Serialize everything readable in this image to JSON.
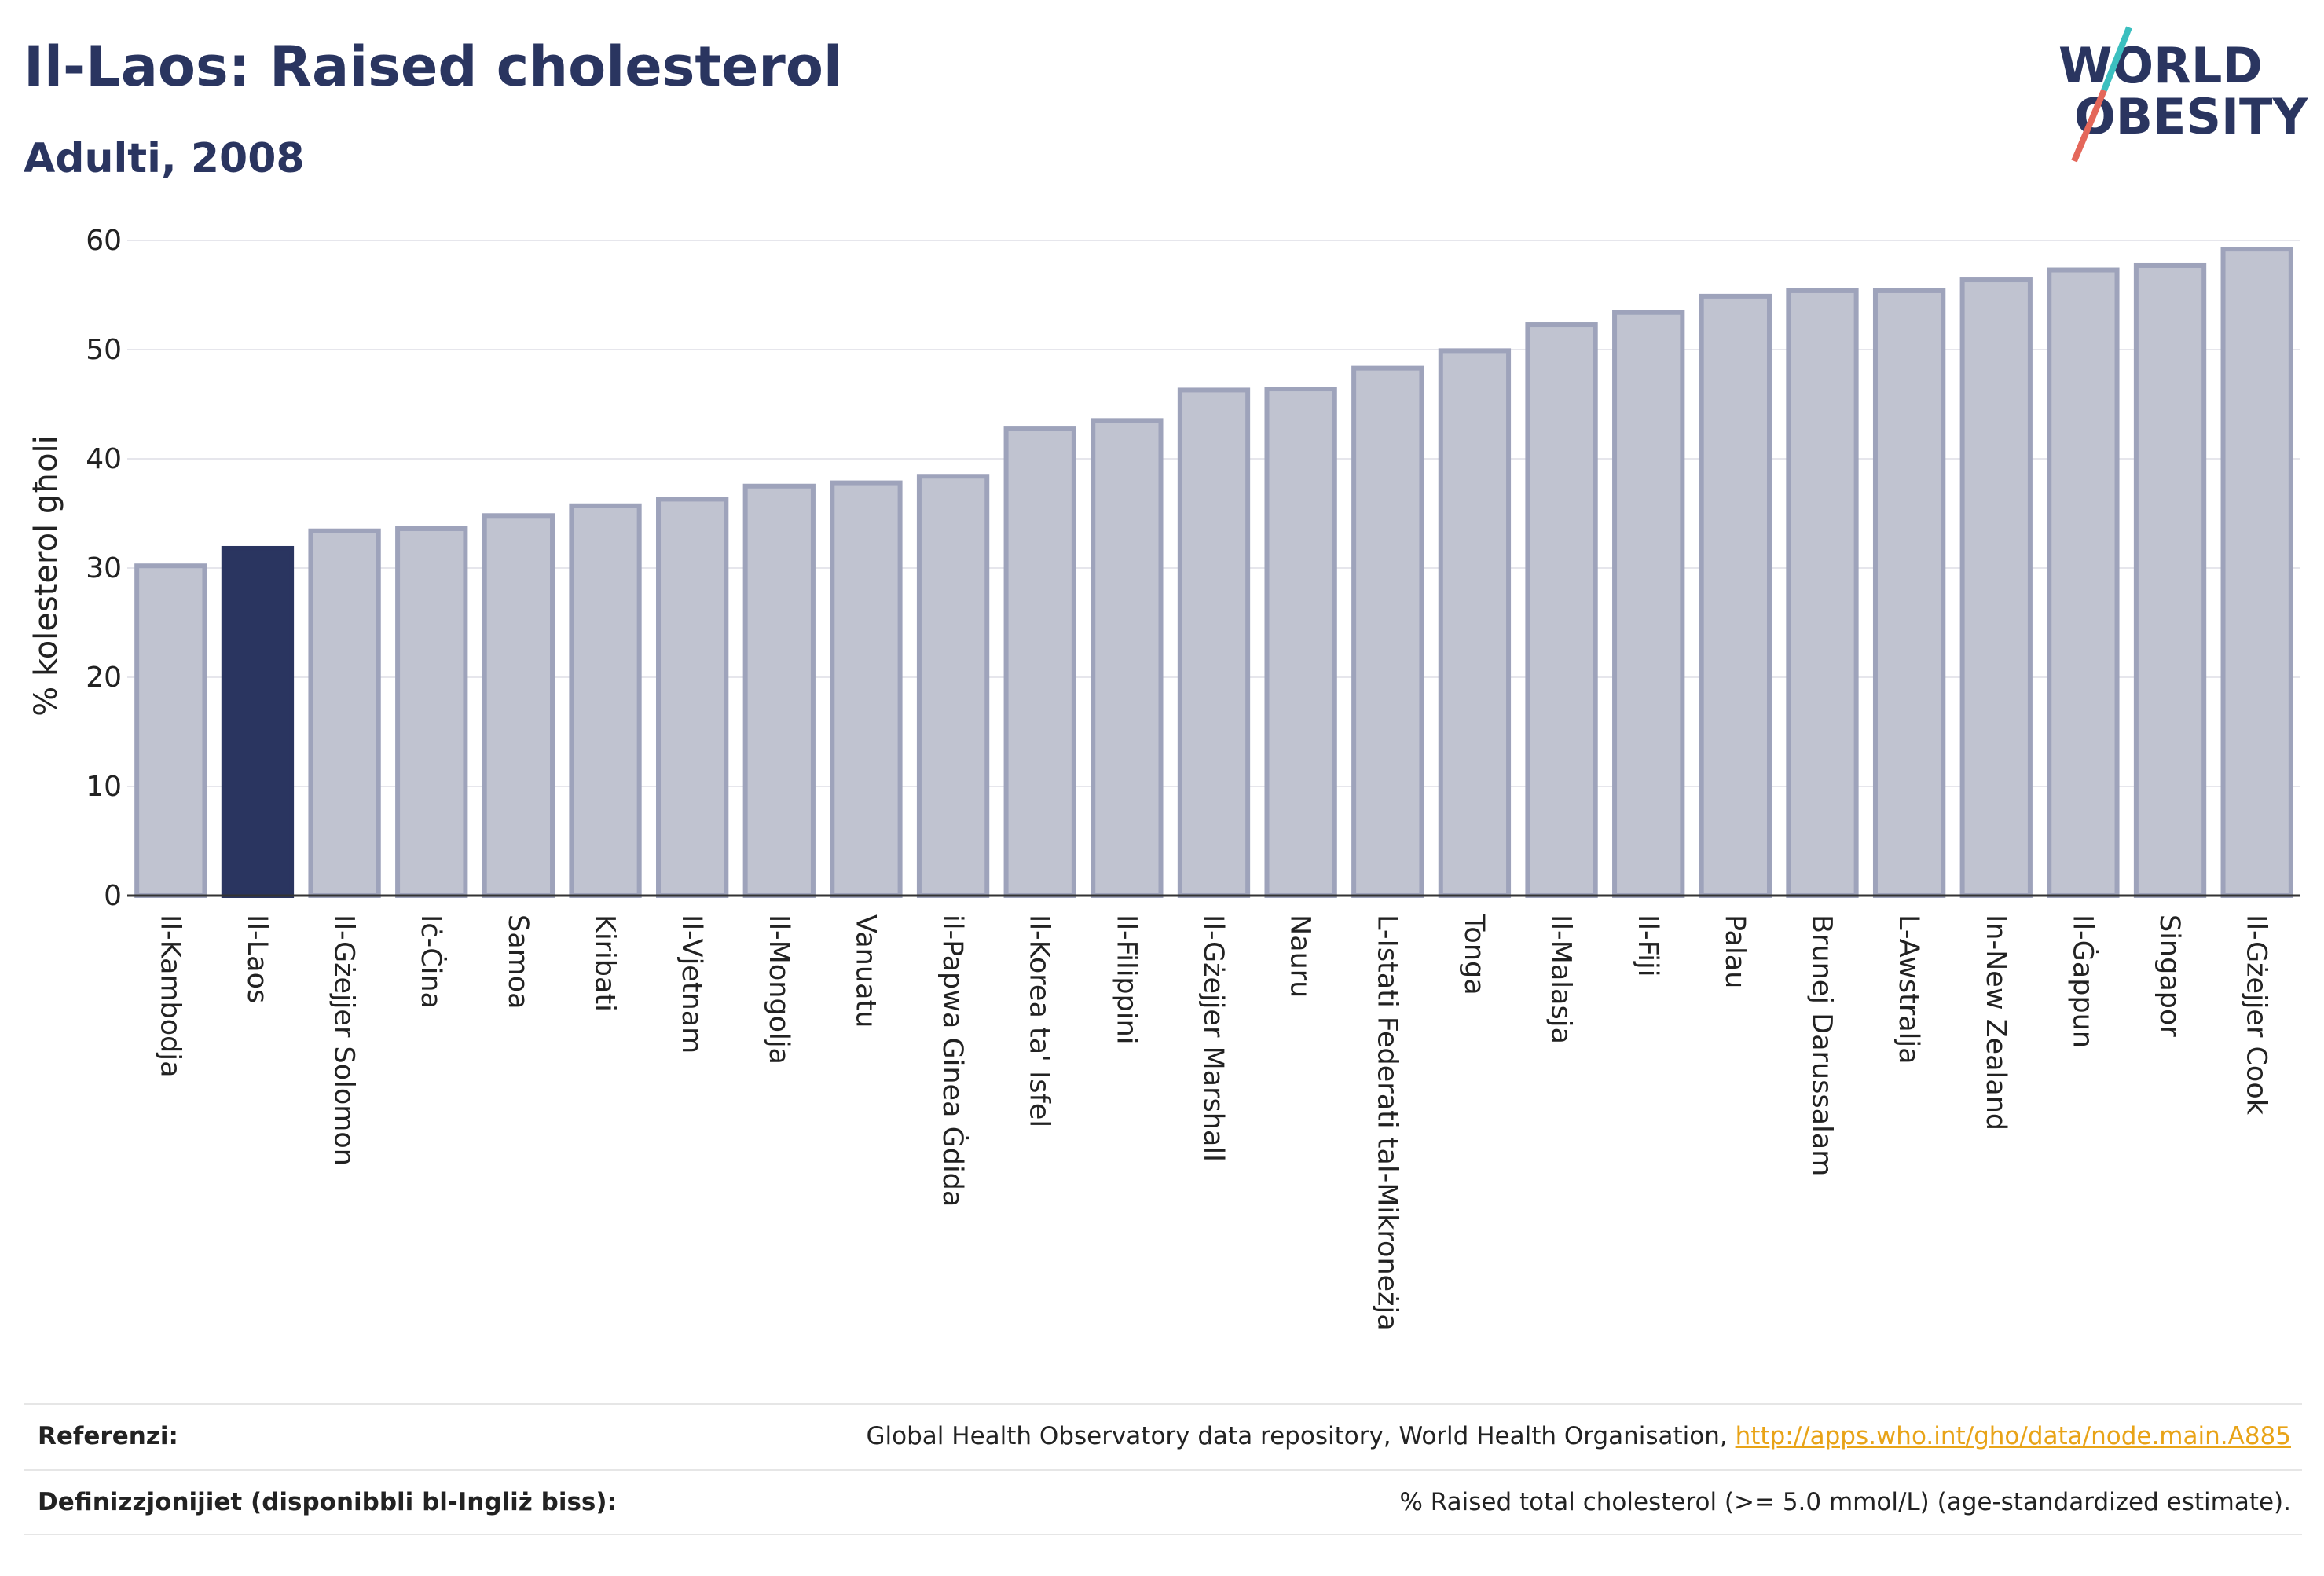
{
  "header": {
    "title": "Il-Laos: Raised cholesterol",
    "subtitle": "Adulti, 2008"
  },
  "logo": {
    "line1": "WORLD",
    "line2": "OBESITY"
  },
  "colors": {
    "highlight": "#2a3560",
    "bar": "#c0c3d0",
    "bar_border": "#9ea3bb",
    "link": "#e8a317",
    "logo_slash_top": "#3bbfbf",
    "logo_slash_bottom": "#e4675a"
  },
  "chart_data": {
    "type": "bar",
    "ylabel": "% kolesterol għoli",
    "ylim": [
      0,
      60
    ],
    "yticks": [
      0,
      10,
      20,
      30,
      40,
      50,
      60
    ],
    "highlight": "Il-Laos",
    "categories": [
      "Il-Kambodja",
      "Il-Laos",
      "Il-Gżejjer Solomon",
      "Iċ-Ċina",
      "Samoa",
      "Kiribati",
      "Il-Vjetnam",
      "Il-Mongolja",
      "Vanuatu",
      "il-Papwa Ginea Ġdida",
      "Il-Korea ta' Isfel",
      "Il-Filippini",
      "Il-Gżejjer Marshall",
      "Nauru",
      "L-Istati Federati tal-Mikroneżja",
      "Tonga",
      "Il-Malasja",
      "Il-Fiji",
      "Palau",
      "Brunej Darussalam",
      "L-Awstralja",
      "In-New Zealand",
      "Il-Ġappun",
      "Singapor",
      "Il-Gżejjer Cook"
    ],
    "values": [
      30.2,
      31.8,
      33.4,
      33.6,
      34.8,
      35.7,
      36.3,
      37.5,
      37.8,
      38.4,
      42.8,
      43.5,
      46.3,
      46.4,
      48.3,
      49.9,
      52.3,
      53.4,
      54.9,
      55.4,
      55.4,
      56.4,
      57.3,
      57.7,
      59.2
    ],
    "grid": true
  },
  "footer": {
    "ref_label": "Referenzi:",
    "ref_text": "Global Health Observatory data repository, World Health Organisation, ",
    "ref_link": "http://apps.who.int/gho/data/node.main.A885",
    "def_label": "Definizzjonijiet (disponibbli bl-Ingliż biss):",
    "def_text": "% Raised total cholesterol (>= 5.0 mmol/L) (age-standardized estimate)."
  }
}
